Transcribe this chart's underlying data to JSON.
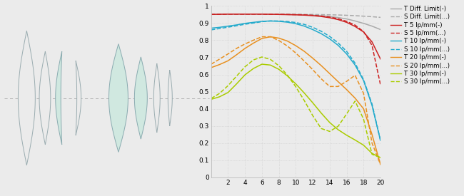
{
  "bg_color": "#ebebeb",
  "plot_bg": "#ebebeb",
  "xlim": [
    0,
    20
  ],
  "ylim": [
    0,
    1.0
  ],
  "xticks": [
    2,
    4,
    6,
    8,
    10,
    12,
    14,
    16,
    18,
    20
  ],
  "yticks": [
    0,
    0.1,
    0.2,
    0.3,
    0.4,
    0.5,
    0.6,
    0.7,
    0.8,
    0.9,
    1
  ],
  "series": [
    {
      "label": "T Diff. Limit(-)",
      "color": "#aaaaaa",
      "linestyle": "solid",
      "x": [
        0,
        1,
        2,
        3,
        4,
        5,
        6,
        7,
        8,
        9,
        10,
        11,
        12,
        13,
        14,
        15,
        16,
        17,
        18,
        19,
        20
      ],
      "y": [
        0.95,
        0.951,
        0.952,
        0.952,
        0.952,
        0.952,
        0.952,
        0.951,
        0.951,
        0.95,
        0.949,
        0.948,
        0.946,
        0.943,
        0.938,
        0.932,
        0.924,
        0.912,
        0.898,
        0.882,
        0.862
      ]
    },
    {
      "label": "S Diff. Limit(...)",
      "color": "#aaaaaa",
      "linestyle": "dashed",
      "x": [
        0,
        1,
        2,
        3,
        4,
        5,
        6,
        7,
        8,
        9,
        10,
        11,
        12,
        13,
        14,
        15,
        16,
        17,
        18,
        19,
        20
      ],
      "y": [
        0.95,
        0.951,
        0.952,
        0.952,
        0.952,
        0.952,
        0.952,
        0.952,
        0.952,
        0.951,
        0.951,
        0.95,
        0.95,
        0.949,
        0.948,
        0.947,
        0.945,
        0.943,
        0.94,
        0.937,
        0.933
      ]
    },
    {
      "label": "T 5 lp/mm(-)",
      "color": "#cc2222",
      "linestyle": "solid",
      "x": [
        0,
        1,
        2,
        3,
        4,
        5,
        6,
        7,
        8,
        9,
        10,
        11,
        12,
        13,
        14,
        15,
        16,
        17,
        18,
        19,
        20
      ],
      "y": [
        0.95,
        0.951,
        0.952,
        0.952,
        0.952,
        0.952,
        0.952,
        0.951,
        0.95,
        0.949,
        0.948,
        0.946,
        0.943,
        0.938,
        0.931,
        0.92,
        0.904,
        0.88,
        0.848,
        0.79,
        0.69
      ]
    },
    {
      "label": "S 5 lp/mm(...)",
      "color": "#cc2222",
      "linestyle": "dashed",
      "x": [
        0,
        1,
        2,
        3,
        4,
        5,
        6,
        7,
        8,
        9,
        10,
        11,
        12,
        13,
        14,
        15,
        16,
        17,
        18,
        19,
        20
      ],
      "y": [
        0.95,
        0.951,
        0.952,
        0.952,
        0.952,
        0.952,
        0.952,
        0.951,
        0.951,
        0.95,
        0.949,
        0.948,
        0.945,
        0.941,
        0.935,
        0.925,
        0.91,
        0.888,
        0.85,
        0.77,
        0.54
      ]
    },
    {
      "label": "T 10 lp/mm(-)",
      "color": "#22aacc",
      "linestyle": "solid",
      "x": [
        0,
        1,
        2,
        3,
        4,
        5,
        6,
        7,
        8,
        9,
        10,
        11,
        12,
        13,
        14,
        15,
        16,
        17,
        18,
        19,
        20
      ],
      "y": [
        0.87,
        0.875,
        0.882,
        0.889,
        0.898,
        0.904,
        0.91,
        0.912,
        0.91,
        0.905,
        0.896,
        0.882,
        0.862,
        0.838,
        0.808,
        0.77,
        0.72,
        0.655,
        0.565,
        0.42,
        0.215
      ]
    },
    {
      "label": "S 10 lp/mm(...)",
      "color": "#22aacc",
      "linestyle": "dashed",
      "x": [
        0,
        1,
        2,
        3,
        4,
        5,
        6,
        7,
        8,
        9,
        10,
        11,
        12,
        13,
        14,
        15,
        16,
        17,
        18,
        19,
        20
      ],
      "y": [
        0.86,
        0.868,
        0.876,
        0.884,
        0.893,
        0.9,
        0.908,
        0.912,
        0.912,
        0.909,
        0.903,
        0.892,
        0.875,
        0.852,
        0.822,
        0.784,
        0.735,
        0.666,
        0.57,
        0.428,
        0.215
      ]
    },
    {
      "label": "T 20 lp/mm(-)",
      "color": "#e89020",
      "linestyle": "solid",
      "x": [
        0,
        1,
        2,
        3,
        4,
        5,
        6,
        7,
        8,
        9,
        10,
        11,
        12,
        13,
        14,
        15,
        16,
        17,
        18,
        19,
        20
      ],
      "y": [
        0.64,
        0.658,
        0.68,
        0.715,
        0.752,
        0.783,
        0.81,
        0.82,
        0.812,
        0.795,
        0.768,
        0.735,
        0.695,
        0.652,
        0.605,
        0.558,
        0.512,
        0.462,
        0.4,
        0.25,
        0.075
      ]
    },
    {
      "label": "S 20 lp/mm(...)",
      "color": "#e89020",
      "linestyle": "dashed",
      "x": [
        0,
        1,
        2,
        3,
        4,
        5,
        6,
        7,
        8,
        9,
        10,
        11,
        12,
        13,
        14,
        15,
        16,
        17,
        18,
        19,
        20
      ],
      "y": [
        0.66,
        0.69,
        0.72,
        0.752,
        0.778,
        0.8,
        0.82,
        0.82,
        0.798,
        0.766,
        0.725,
        0.678,
        0.628,
        0.575,
        0.53,
        0.53,
        0.56,
        0.595,
        0.49,
        0.2,
        0.075
      ]
    },
    {
      "label": "T 30 lp/mm(-)",
      "color": "#aacc00",
      "linestyle": "solid",
      "x": [
        0,
        1,
        2,
        3,
        4,
        5,
        6,
        7,
        8,
        9,
        10,
        11,
        12,
        13,
        14,
        15,
        16,
        17,
        18,
        19,
        20
      ],
      "y": [
        0.455,
        0.47,
        0.495,
        0.545,
        0.598,
        0.635,
        0.66,
        0.655,
        0.63,
        0.592,
        0.545,
        0.492,
        0.435,
        0.375,
        0.32,
        0.278,
        0.246,
        0.218,
        0.188,
        0.14,
        0.115
      ]
    },
    {
      "label": "S 30 lp/mm(...)",
      "color": "#aacc00",
      "linestyle": "dashed",
      "x": [
        0,
        1,
        2,
        3,
        4,
        5,
        6,
        7,
        8,
        9,
        10,
        11,
        12,
        13,
        14,
        15,
        16,
        17,
        18,
        19,
        20
      ],
      "y": [
        0.46,
        0.49,
        0.535,
        0.59,
        0.645,
        0.685,
        0.702,
        0.688,
        0.651,
        0.597,
        0.528,
        0.448,
        0.36,
        0.285,
        0.268,
        0.298,
        0.37,
        0.445,
        0.34,
        0.135,
        0.115
      ]
    }
  ],
  "legend_fontsize": 6.2,
  "tick_fontsize": 6.5,
  "lens_bg": "#ebebeb",
  "lens_fill": "#d0e8e0",
  "lens_edge": "#8aabb0",
  "lens_edge_unfilled": "#9aacb0",
  "axis_line_color": "#bbbbbb"
}
